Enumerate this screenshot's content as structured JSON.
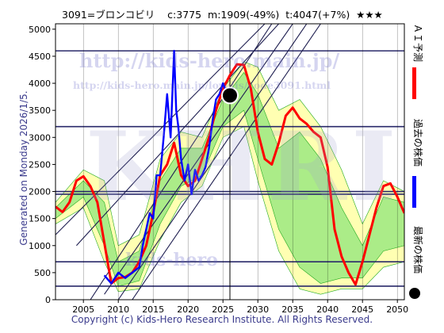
{
  "header": {
    "title": "3091=ブロンコビリ    c:3775  m:1909(-49%)  t:4047(+7%)  ★★★"
  },
  "side_label": "Generated on Monday 2026/1/5.",
  "footer": "Copyright (c) Kids-Hero Research Institute. All Rights Reserved.",
  "watermarks": {
    "url_main": "http://kids-hero.main.jp/",
    "url_sub": "http://kids-hero.main.jp/lovelis/code3091.html",
    "brand_big": "KHRI",
    "brand_small": "kids-hero"
  },
  "legend": [
    {
      "label": "ＡＩ予測",
      "color": "#ff0000",
      "marker": "bar"
    },
    {
      "label": "過去の株価",
      "color": "#0000ff",
      "marker": "bar"
    },
    {
      "label": "最新の株価",
      "color": "#000000",
      "marker": "dot"
    }
  ],
  "colors": {
    "ai_forecast": "#ff0000",
    "past_price": "#0000ff",
    "latest_price": "#000000",
    "band_outer": "#ffffaa",
    "band_inner": "#66dd66",
    "band_lines": "#22aa22",
    "channel": "#1e1e50",
    "hline": "#2a2a6a",
    "vgrid": "#000000"
  },
  "chart_data": {
    "type": "line",
    "xlim": [
      2001,
      2051
    ],
    "ylim": [
      0,
      5100
    ],
    "x_ticks": [
      2005,
      2010,
      2015,
      2020,
      2025,
      2030,
      2035,
      2040,
      2045,
      2050
    ],
    "y_ticks": [
      0,
      500,
      1000,
      1500,
      2000,
      2500,
      3000,
      3500,
      4000,
      4500,
      5000
    ],
    "latest_point": {
      "x": 2026.0,
      "y": 3775
    },
    "current_year_marker": 2026.0,
    "horizontal_levels": [
      4600,
      3200,
      2000,
      1950,
      700,
      250
    ],
    "channel_lines": [
      [
        [
          2001,
          1200
        ],
        [
          2031,
          5100
        ]
      ],
      [
        [
          2004,
          1000
        ],
        [
          2033,
          5100
        ]
      ],
      [
        [
          2008,
          100
        ],
        [
          2035,
          5100
        ]
      ],
      [
        [
          2010,
          0
        ],
        [
          2037,
          5100
        ]
      ],
      [
        [
          2012,
          0
        ],
        [
          2039,
          5100
        ]
      ],
      [
        [
          2006,
          0
        ],
        [
          2032,
          5100
        ]
      ]
    ],
    "series": [
      {
        "name": "ＡＩ予測",
        "x": [
          2001,
          2002,
          2003,
          2004,
          2005,
          2006,
          2007,
          2008,
          2009,
          2010,
          2011,
          2012,
          2013,
          2014,
          2015,
          2016,
          2017,
          2018,
          2019,
          2020,
          2021,
          2022,
          2023,
          2024,
          2025,
          2026,
          2027,
          2028,
          2029,
          2030,
          2031,
          2032,
          2033,
          2034,
          2035,
          2036,
          2037,
          2038,
          2039,
          2040,
          2041,
          2042,
          2043,
          2044,
          2045,
          2046,
          2047,
          2048,
          2049,
          2050,
          2051
        ],
        "y": [
          1720,
          1620,
          1800,
          2200,
          2280,
          2100,
          1800,
          1050,
          300,
          400,
          420,
          500,
          700,
          1000,
          1600,
          2300,
          2500,
          2900,
          2300,
          2100,
          2200,
          2600,
          3000,
          3500,
          3900,
          4150,
          4350,
          4340,
          3900,
          3100,
          2600,
          2500,
          2900,
          3400,
          3550,
          3350,
          3250,
          3100,
          3000,
          2450,
          1300,
          800,
          500,
          280,
          700,
          1200,
          1700,
          2100,
          2150,
          1900,
          1600
        ]
      },
      {
        "name": "過去の株価",
        "x": [
          2008.0,
          2009.0,
          2010.0,
          2011.0,
          2012.0,
          2013.0,
          2013.5,
          2014.0,
          2014.5,
          2015.0,
          2015.5,
          2016.0,
          2016.5,
          2017.0,
          2017.5,
          2018.0,
          2018.3,
          2018.6,
          2019.0,
          2019.5,
          2020.0,
          2020.5,
          2021.0,
          2021.5,
          2022.0,
          2022.5,
          2023.0,
          2023.5,
          2024.0,
          2024.5,
          2025.0,
          2025.3,
          2025.6,
          2026.0
        ],
        "y": [
          450,
          300,
          500,
          400,
          500,
          600,
          1000,
          1300,
          1600,
          1500,
          2300,
          2300,
          3000,
          3800,
          3000,
          4600,
          3500,
          3200,
          2600,
          2200,
          2500,
          1950,
          2400,
          2200,
          2300,
          2450,
          2800,
          3300,
          3700,
          3800,
          4000,
          3900,
          3850,
          3775
        ]
      }
    ],
    "bands": [
      {
        "name": "outer",
        "x": [
          2001,
          2005,
          2008,
          2010,
          2013,
          2016,
          2019,
          2022,
          2025,
          2028,
          2030,
          2033,
          2036,
          2039,
          2042,
          2045,
          2048,
          2051
        ],
        "upper": [
          1800,
          2400,
          2200,
          1000,
          1200,
          2600,
          3100,
          3000,
          3900,
          4400,
          4300,
          3500,
          3700,
          3200,
          2400,
          1400,
          2200,
          2000
        ],
        "lower": [
          1400,
          1700,
          700,
          150,
          200,
          1100,
          1800,
          2100,
          3000,
          3200,
          2200,
          900,
          200,
          100,
          200,
          200,
          600,
          700
        ]
      },
      {
        "name": "inner",
        "x": [
          2001,
          2005,
          2008,
          2010,
          2013,
          2016,
          2019,
          2022,
          2025,
          2028,
          2030,
          2033,
          2036,
          2039,
          2042,
          2045,
          2048,
          2051
        ],
        "upper": [
          1700,
          2200,
          1800,
          700,
          900,
          2200,
          2800,
          2800,
          3700,
          4200,
          3800,
          2800,
          3100,
          2600,
          1700,
          1000,
          1900,
          1800
        ],
        "lower": [
          1500,
          1900,
          1000,
          250,
          350,
          1400,
          2100,
          2300,
          3200,
          3500,
          2600,
          1300,
          600,
          300,
          400,
          400,
          900,
          1000
        ]
      }
    ]
  }
}
